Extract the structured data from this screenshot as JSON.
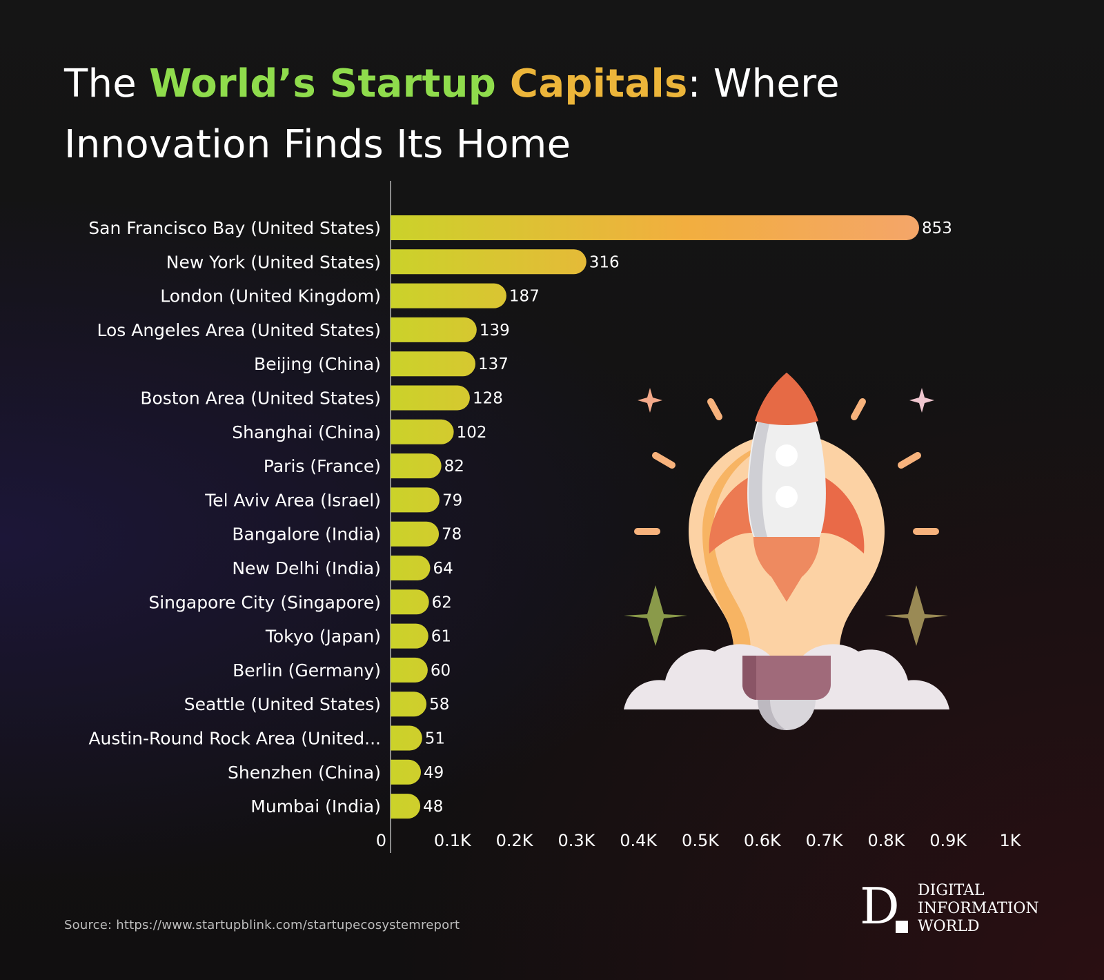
{
  "title": {
    "part1": "The ",
    "highlight_green": "World’s Startup",
    "highlight_gold": " Capitals",
    "part2": ": Where Innovation Finds Its Home"
  },
  "source": "Source: https://www.startupblink.com/startupecosystemreport",
  "brand": {
    "logo_letter": "D",
    "line1": "DIGITAL",
    "line2": "INFORMATION",
    "line3": "WORLD"
  },
  "colors": {
    "bar_start": "#cbd22a",
    "bar_mid": "#f2ae3f",
    "bar_end": "#f4a56b",
    "title_green": "#8fdc4c",
    "title_gold": "#ecb53a"
  },
  "chart_data": {
    "type": "bar",
    "orientation": "horizontal",
    "categories": [
      "San Francisco Bay (United States)",
      "New York (United States)",
      "London (United Kingdom)",
      "Los Angeles Area (United States)",
      "Beijing (China)",
      "Boston Area (United States)",
      "Shanghai (China)",
      "Paris (France)",
      "Tel Aviv Area (Israel)",
      "Bangalore (India)",
      "New Delhi (India)",
      "Singapore City (Singapore)",
      "Tokyo (Japan)",
      "Berlin (Germany)",
      "Seattle (United States)",
      "Austin-Round Rock Area (United...",
      "Shenzhen (China)",
      "Mumbai (India)"
    ],
    "values": [
      853,
      316,
      187,
      139,
      137,
      128,
      102,
      82,
      79,
      78,
      64,
      62,
      61,
      60,
      58,
      51,
      49,
      48
    ],
    "value_labels": [
      "853",
      "316",
      "187",
      "139",
      "137",
      "128",
      "102",
      "82",
      "79",
      "78",
      "64",
      "62",
      "61",
      "60",
      "58",
      "51",
      "49",
      "48"
    ],
    "xlim": [
      0,
      1000
    ],
    "x_ticks": [
      0,
      100,
      200,
      300,
      400,
      500,
      600,
      700,
      800,
      900,
      1000
    ],
    "x_tick_labels": [
      "0",
      "0.1K",
      "0.2K",
      "0.3K",
      "0.4K",
      "0.5K",
      "0.6K",
      "0.7K",
      "0.8K",
      "0.9K",
      "1K"
    ],
    "grid": false,
    "legend": "none",
    "title": "The World’s Startup Capitals: Where Innovation Finds Its Home"
  },
  "illustration": {
    "icon": "rocket-lightbulb-icon"
  }
}
